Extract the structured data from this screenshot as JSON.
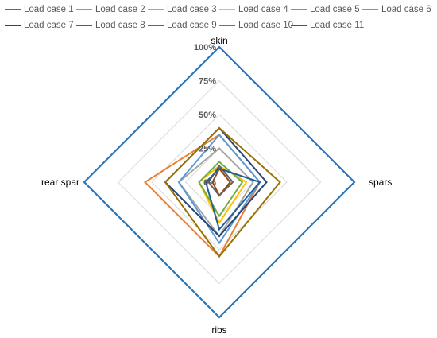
{
  "chart_data": {
    "type": "radar",
    "title": "",
    "axes": [
      "skin",
      "spars",
      "ribs",
      "rear spar"
    ],
    "rlim": [
      0,
      100
    ],
    "ticks": [
      "0%",
      "25%",
      "50%",
      "75%",
      "100%"
    ],
    "tick_values": [
      0,
      25,
      50,
      75,
      100
    ],
    "grid": true,
    "legend_position": "top",
    "series": [
      {
        "name": "Load case 1",
        "color": "#2e75b6",
        "values": [
          100,
          100,
          100,
          100
        ]
      },
      {
        "name": "Load case 2",
        "color": "#ed7d31",
        "values": [
          35,
          30,
          55,
          55
        ]
      },
      {
        "name": "Load case 3",
        "color": "#a5a5a5",
        "values": [
          25,
          25,
          40,
          30
        ]
      },
      {
        "name": "Load case 4",
        "color": "#ffc000",
        "values": [
          12,
          20,
          30,
          15
        ]
      },
      {
        "name": "Load case 5",
        "color": "#5b9bd5",
        "values": [
          35,
          30,
          45,
          30
        ]
      },
      {
        "name": "Load case 6",
        "color": "#70ad47",
        "values": [
          15,
          17,
          25,
          15
        ]
      },
      {
        "name": "Load case 7",
        "color": "#264478",
        "values": [
          40,
          35,
          40,
          40
        ]
      },
      {
        "name": "Load case 8",
        "color": "#9e480e",
        "values": [
          10,
          8,
          10,
          5
        ]
      },
      {
        "name": "Load case 9",
        "color": "#636363",
        "values": [
          12,
          10,
          10,
          8
        ]
      },
      {
        "name": "Load case 10",
        "color": "#997300",
        "values": [
          40,
          45,
          55,
          40
        ]
      },
      {
        "name": "Load case 11",
        "color": "#255e91",
        "values": [
          10,
          30,
          35,
          10
        ]
      }
    ]
  }
}
